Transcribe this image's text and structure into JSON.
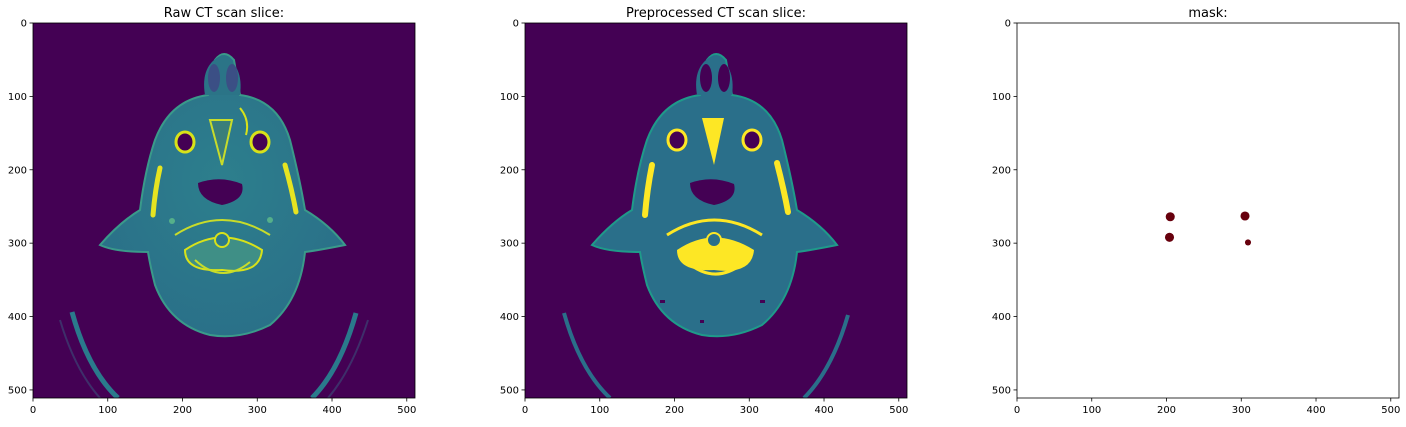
{
  "chart_data": [
    {
      "type": "image",
      "title": "Raw CT scan slice:",
      "xlim": [
        0,
        511
      ],
      "ylim": [
        511,
        0
      ],
      "xticks": [
        0,
        100,
        200,
        300,
        400,
        500
      ],
      "yticks": [
        0,
        100,
        200,
        300,
        400,
        500
      ],
      "colormap": "viridis",
      "background_color": "#440154",
      "soft_tissue_color": "#2a7a8c",
      "bone_color": "#d8e219"
    },
    {
      "type": "image",
      "title": "Preprocessed CT scan slice:",
      "xlim": [
        0,
        511
      ],
      "ylim": [
        511,
        0
      ],
      "xticks": [
        0,
        100,
        200,
        300,
        400,
        500
      ],
      "yticks": [
        0,
        100,
        200,
        300,
        400,
        500
      ],
      "colormap": "viridis",
      "background_color": "#440154",
      "soft_tissue_color": "#2a6f8a",
      "bone_color": "#fde725"
    },
    {
      "type": "image",
      "title": "mask:",
      "xlim": [
        0,
        511
      ],
      "ylim": [
        511,
        0
      ],
      "xticks": [
        0,
        100,
        200,
        300,
        400,
        500
      ],
      "yticks": [
        0,
        100,
        200,
        300,
        400,
        500
      ],
      "background_color": "#ffffff",
      "region_color": "#67000d",
      "regions": [
        {
          "x": 205,
          "y": 264,
          "r": 5
        },
        {
          "x": 305,
          "y": 263,
          "r": 5
        },
        {
          "x": 204,
          "y": 292,
          "r": 5
        },
        {
          "x": 309,
          "y": 299,
          "r": 3
        }
      ]
    }
  ]
}
